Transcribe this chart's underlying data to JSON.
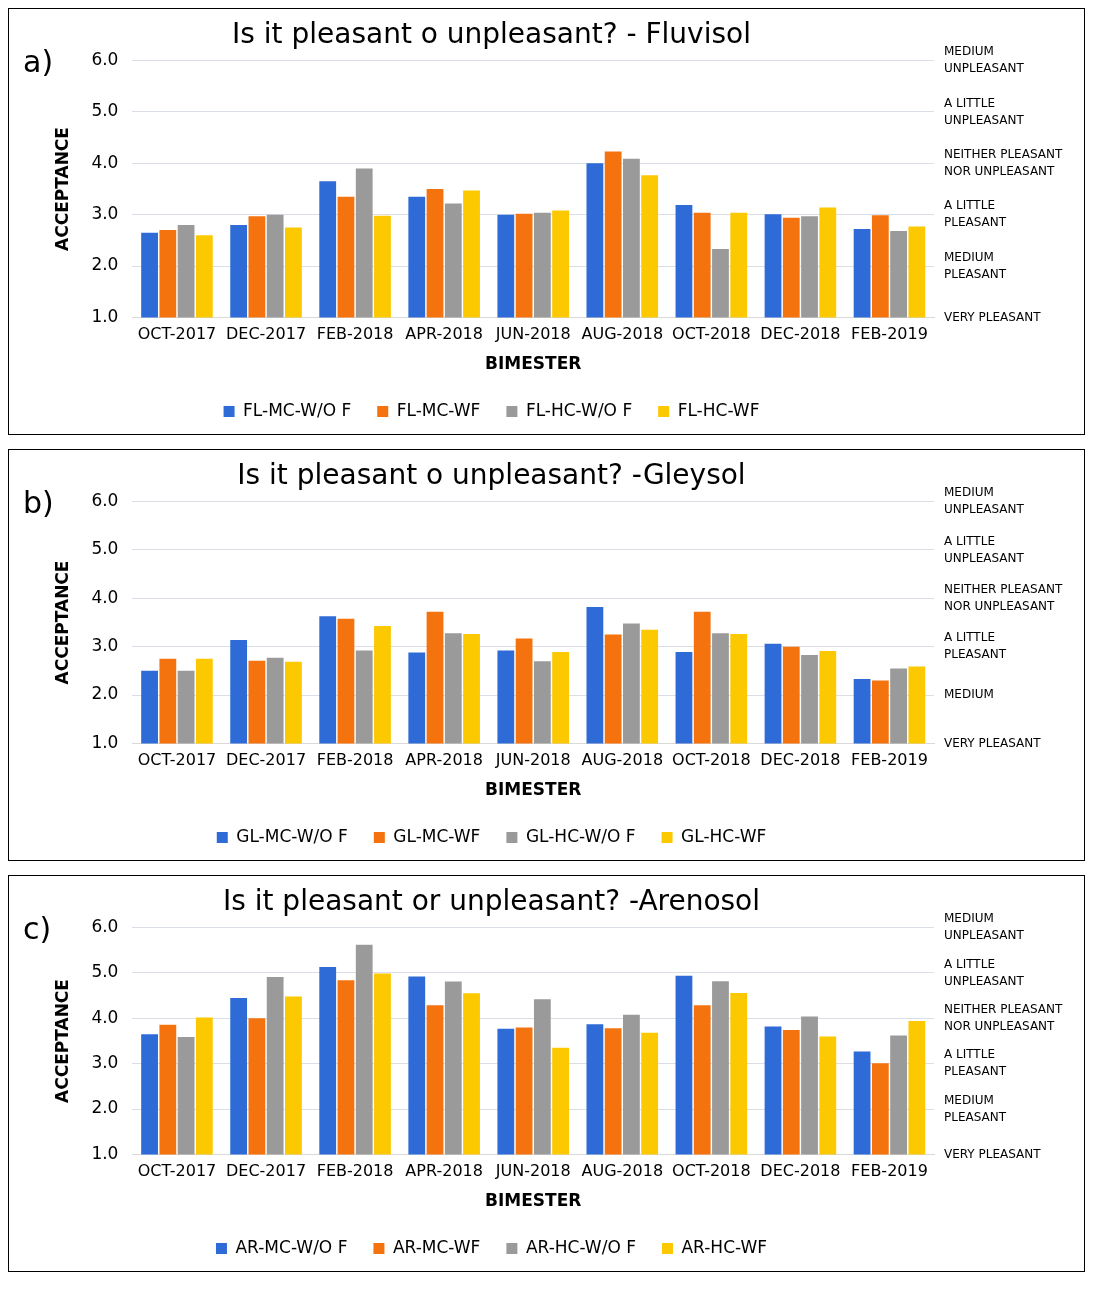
{
  "chart_data": [
    {
      "type": "bar",
      "title": "Is it pleasant o unpleasant? - Fluvisol",
      "xlabel": "BIMESTER",
      "ylabel": "ACCEPTANCE",
      "categories": [
        "OCT-2017",
        "DEC-2017",
        "FEB-2018",
        "APR-2018",
        "JUN-2018",
        "AUG-2018",
        "OCT-2018",
        "DEC-2018",
        "FEB-2019"
      ],
      "series": [
        {
          "name": "FL-MC-W/O F",
          "color": "#2e6bd6",
          "values": [
            2.65,
            2.8,
            3.65,
            3.35,
            3.0,
            4.0,
            3.19,
            3.01,
            2.72
          ]
        },
        {
          "name": "FL-MC-WF",
          "color": "#f4730f",
          "values": [
            2.7,
            2.97,
            3.35,
            3.5,
            3.02,
            4.23,
            3.04,
            2.94,
            2.99
          ]
        },
        {
          "name": "FL-HC-W/O F",
          "color": "#9a9a9a",
          "values": [
            2.8,
            3.0,
            3.9,
            3.22,
            3.04,
            4.09,
            2.33,
            2.97,
            2.68
          ]
        },
        {
          "name": "FL-HC-WF",
          "color": "#fcc800",
          "values": [
            2.6,
            2.75,
            2.98,
            3.47,
            3.08,
            3.77,
            3.04,
            3.14,
            2.77
          ]
        }
      ],
      "ylim": [
        1,
        6
      ],
      "yticks": [
        {
          "value": 1,
          "label": "1.0"
        },
        {
          "value": 2,
          "label": "2.0"
        },
        {
          "value": 3,
          "label": "3.0"
        },
        {
          "value": 4,
          "label": "4.0"
        },
        {
          "value": 5,
          "label": "5.0"
        },
        {
          "value": 6,
          "label": "6.0"
        }
      ],
      "annotations": [
        "a)",
        "VERY PLEASANT",
        "MEDIUM\nPLEASANT",
        "A LITTLE\nPLEASANT",
        "NEITHER PLEASANT\nNOR UNPLEASANT",
        "A LITTLE\nUNPLEASANT",
        "MEDIUM\nUNPLEASANT"
      ],
      "grid": "y",
      "legend": "bottom"
    },
    {
      "type": "bar",
      "title": "Is it pleasant o unpleasant? -Gleysol",
      "xlabel": "BIMESTER",
      "ylabel": "ACCEPTANCE",
      "categories": [
        "OCT-2017",
        "DEC-2017",
        "FEB-2018",
        "APR-2018",
        "JUN-2018",
        "AUG-2018",
        "OCT-2018",
        "DEC-2018",
        "FEB-2019"
      ],
      "series": [
        {
          "name": "GL-MC-W/O F",
          "color": "#2e6bd6",
          "values": [
            2.5,
            3.14,
            3.63,
            2.88,
            2.92,
            3.82,
            2.89,
            3.06,
            2.33
          ]
        },
        {
          "name": "GL-MC-WF",
          "color": "#f4730f",
          "values": [
            2.75,
            2.71,
            3.58,
            3.72,
            3.17,
            3.25,
            3.72,
            3.0,
            2.3
          ]
        },
        {
          "name": "GL-HC-W/O F",
          "color": "#9a9a9a",
          "values": [
            2.5,
            2.77,
            2.92,
            3.28,
            2.7,
            3.48,
            3.28,
            2.83,
            2.55
          ]
        },
        {
          "name": "GL-HC-WF",
          "color": "#fcc800",
          "values": [
            2.75,
            2.69,
            3.43,
            3.26,
            2.89,
            3.35,
            3.26,
            2.91,
            2.59
          ]
        }
      ],
      "ylim": [
        1,
        6
      ],
      "yticks": [
        {
          "value": 1,
          "label": "1.0"
        },
        {
          "value": 2,
          "label": "2.0"
        },
        {
          "value": 3,
          "label": "3.0"
        },
        {
          "value": 4,
          "label": "4.0"
        },
        {
          "value": 5,
          "label": "5.0"
        },
        {
          "value": 6,
          "label": "6.0"
        }
      ],
      "annotations": [
        "b)",
        "VERY PLEASANT",
        "MEDIUM",
        "A LITTLE\nPLEASANT",
        "NEITHER PLEASANT\nNOR UNPLEASANT",
        "A LITTLE\nUNPLEASANT",
        "MEDIUM\nUNPLEASANT"
      ],
      "grid": "y",
      "legend": "bottom"
    },
    {
      "type": "bar",
      "title": "Is it pleasant or unpleasant? -Arenosol",
      "xlabel": "BIMESTER",
      "ylabel": "ACCEPTANCE",
      "categories": [
        "OCT-2017",
        "DEC-2017",
        "FEB-2018",
        "APR-2018",
        "JUN-2018",
        "AUG-2018",
        "OCT-2018",
        "DEC-2018",
        "FEB-2019"
      ],
      "series": [
        {
          "name": "AR-MC-W/O F",
          "color": "#2e6bd6",
          "values": [
            3.65,
            4.45,
            5.13,
            4.92,
            3.77,
            3.87,
            4.94,
            3.82,
            3.27
          ]
        },
        {
          "name": "AR-MC-WF",
          "color": "#f4730f",
          "values": [
            3.86,
            4.0,
            4.84,
            4.29,
            3.8,
            3.78,
            4.29,
            3.74,
            3.01
          ]
        },
        {
          "name": "AR-HC-W/O F",
          "color": "#9a9a9a",
          "values": [
            3.59,
            4.91,
            5.62,
            4.81,
            4.42,
            4.08,
            4.82,
            4.04,
            3.62
          ]
        },
        {
          "name": "AR-HC-WF",
          "color": "#fcc800",
          "values": [
            4.02,
            4.48,
            4.99,
            4.55,
            3.35,
            3.68,
            4.56,
            3.6,
            3.94
          ]
        }
      ],
      "ylim": [
        1,
        6
      ],
      "yticks": [
        {
          "value": 1,
          "label": "1.0"
        },
        {
          "value": 2,
          "label": "2.0"
        },
        {
          "value": 3,
          "label": "3.0"
        },
        {
          "value": 4,
          "label": "4.0"
        },
        {
          "value": 5,
          "label": "5.0"
        },
        {
          "value": 6,
          "label": "6.0"
        }
      ],
      "annotations": [
        "c)",
        "VERY PLEASANT",
        "MEDIUM\nPLEASANT",
        "A LITTLE\nPLEASANT",
        "NEITHER PLEASANT\nNOR UNPLEASANT",
        "A LITTLE\nUNPLEASANT",
        "MEDIUM\nUNPLEASANT"
      ],
      "grid": "y",
      "legend": "bottom"
    }
  ]
}
